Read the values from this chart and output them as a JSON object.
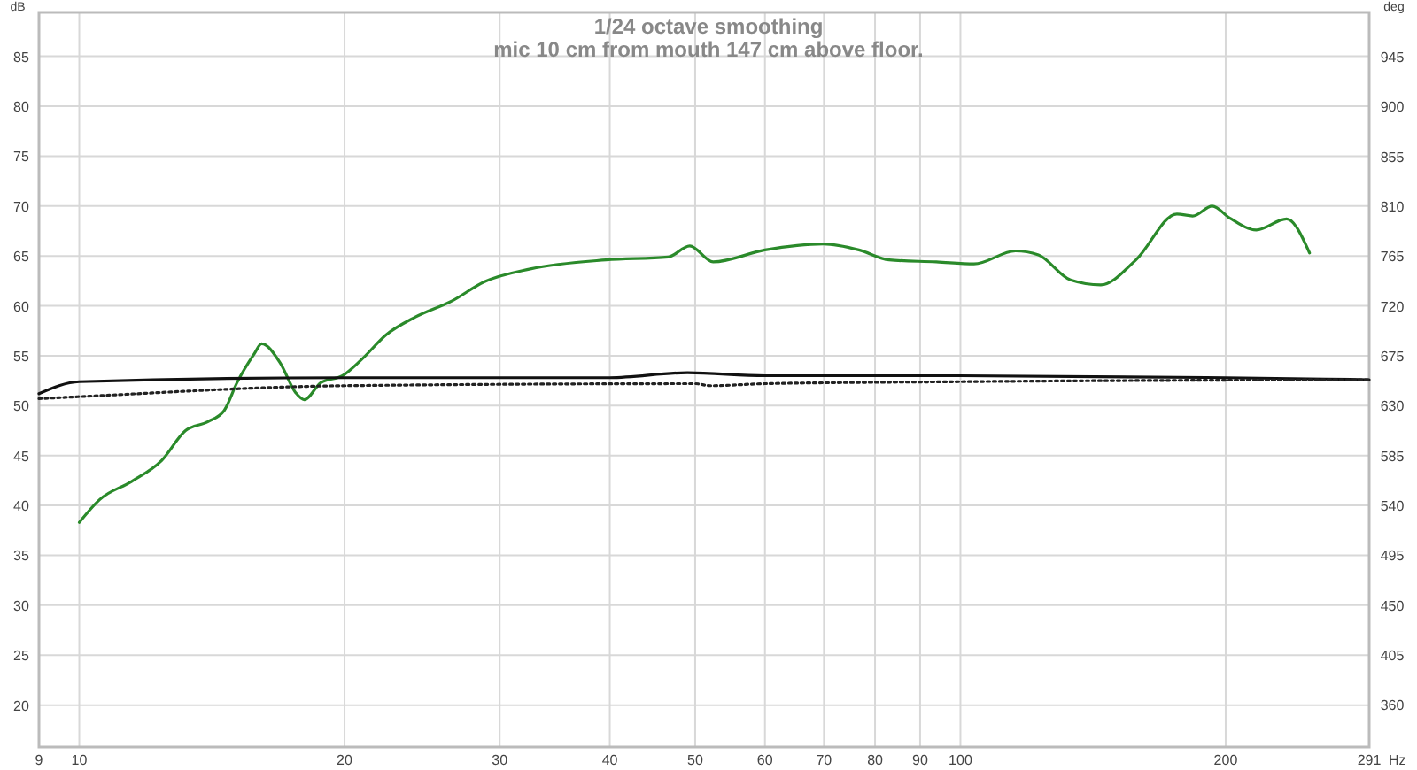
{
  "chart_data": {
    "type": "line",
    "title": "1/24 octave smoothing",
    "subtitle": "mic 10 cm from mouth 147 cm above floor.",
    "xlabel": "Hz",
    "ylabel": "dB",
    "y2label": "deg",
    "log": "x",
    "grid": true,
    "xlim": [
      9,
      291
    ],
    "xticks": [
      9,
      10,
      20,
      30,
      40,
      50,
      60,
      70,
      80,
      90,
      100,
      200,
      291
    ],
    "ylim": [
      15.8,
      89.4
    ],
    "yticks": [
      20,
      25,
      30,
      35,
      40,
      45,
      50,
      55,
      60,
      65,
      70,
      75,
      80,
      85
    ],
    "y2lim": [
      322,
      985
    ],
    "y2ticks": [
      360,
      405,
      450,
      495,
      540,
      585,
      630,
      675,
      720,
      765,
      810,
      855,
      900,
      945
    ],
    "series": [
      {
        "color": "#2a8a2a",
        "line_style": "solid",
        "x": [
          10,
          10.55,
          11.46,
          12.4,
          13.2,
          14.0,
          14.6,
          15.1,
          15.8,
          16.1,
          16.9,
          17.6,
          18.0,
          18.8,
          19.9,
          20.9,
          22.3,
          24.1,
          26.5,
          28.8,
          32.5,
          39.6,
          46.6,
          49.3,
          52.4,
          60.0,
          69.9,
          76.7,
          83.0,
          93.9,
          103.6,
          115.5,
          122.6,
          133.3,
          144.3,
          158.2,
          176.1,
          183.5,
          193.1,
          202.1,
          216.6,
          234.5,
          249.0
        ],
        "values": [
          38.3,
          40.6,
          42.4,
          44.5,
          47.5,
          48.4,
          49.5,
          52.3,
          55.2,
          56.2,
          54.3,
          51.3,
          50.6,
          52.3,
          53.0,
          54.6,
          57.1,
          58.9,
          60.5,
          62.4,
          63.7,
          64.6,
          64.9,
          66.0,
          64.4,
          65.6,
          66.2,
          65.6,
          64.6,
          64.4,
          64.2,
          65.5,
          65.1,
          62.6,
          62.1,
          64.6,
          69.2,
          69.0,
          70.0,
          68.8,
          67.6,
          68.7,
          65.3
        ]
      },
      {
        "color": "#111111",
        "line_style": "solid",
        "x": [
          9,
          10,
          20,
          40,
          49,
          60,
          100,
          200,
          291
        ],
        "values": [
          51.2,
          52.4,
          52.8,
          52.8,
          53.3,
          53.0,
          53.0,
          52.8,
          52.6
        ]
      },
      {
        "color": "#222222",
        "line_style": "dotted",
        "x": [
          9,
          10,
          20,
          50,
          52,
          60,
          100,
          291
        ],
        "values": [
          50.7,
          50.9,
          52.0,
          52.2,
          52.0,
          52.2,
          52.4,
          52.6
        ]
      }
    ]
  }
}
